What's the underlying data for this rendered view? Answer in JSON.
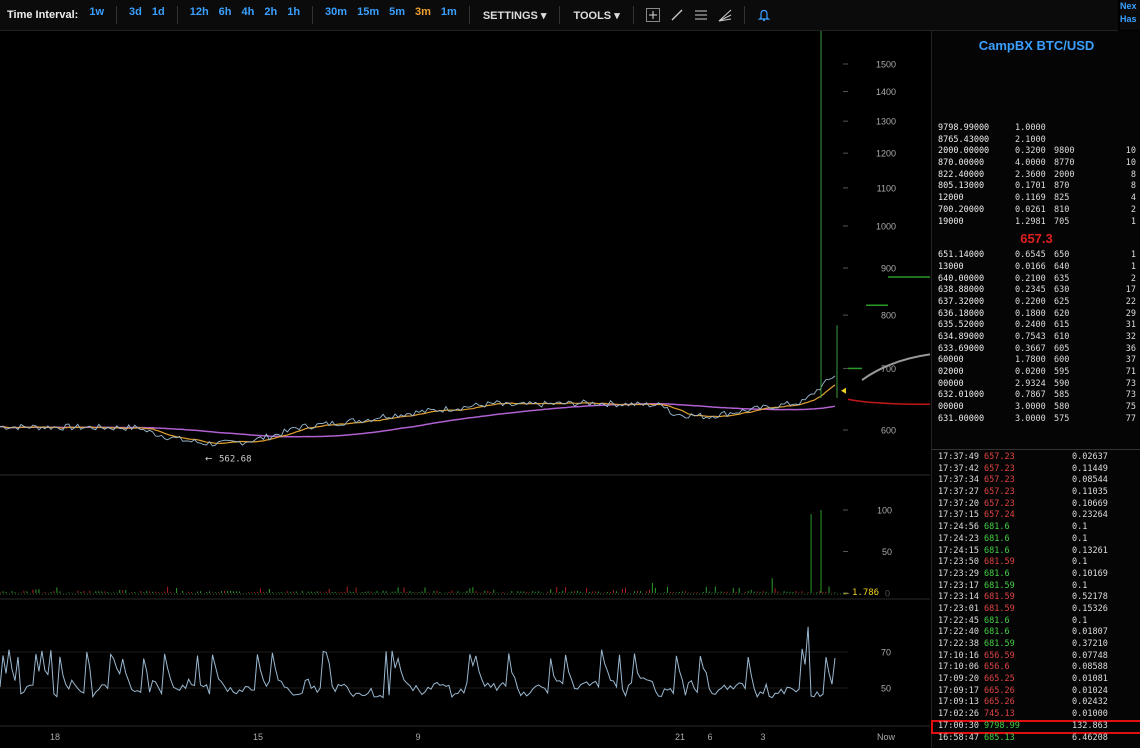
{
  "toolbar": {
    "label": "Time Interval:",
    "intervals": [
      "1w",
      "3d",
      "1d",
      "12h",
      "6h",
      "4h",
      "2h",
      "1h",
      "30m",
      "15m",
      "5m",
      "3m",
      "1m"
    ],
    "active_interval": "3m",
    "settings_label": "SETTINGS",
    "tools_label": "TOOLS",
    "tool_icons": [
      "crosshair-icon",
      "line-icon",
      "horizontal-lines-icon",
      "fan-icon",
      "bell-icon"
    ],
    "corner_text": [
      "Nex",
      "Has"
    ]
  },
  "chart_data": {
    "type": "line",
    "price_axis": {
      "ticks": [
        1500,
        1400,
        1300,
        1200,
        1100,
        1000,
        900,
        800,
        700,
        600
      ]
    },
    "volume_axis": {
      "ticks": [
        100,
        50,
        0
      ]
    },
    "oscillator_axis": {
      "ticks": [
        70,
        50
      ]
    },
    "time_axis": {
      "labels": [
        "18",
        "15",
        "9",
        "21",
        "6",
        "3",
        "Now"
      ]
    },
    "low_annotation": "562.68",
    "volume_annotation": "1.786",
    "colors": {
      "price": "#9ab8d0",
      "ma_fast": "#e0a030",
      "ma_slow": "#b060d0",
      "volume_up": "#2a9a2a",
      "volume_down": "#b02020",
      "oscillator": "#9ab8d0"
    }
  },
  "panel": {
    "title": "CampBX BTC/USD",
    "last_price": "657.3",
    "asks": [
      [
        "9798.99000",
        "1.0000",
        "",
        ""
      ],
      [
        "8765.43000",
        "2.1000",
        "",
        ""
      ],
      [
        "2000.00000",
        "0.3200",
        "9800",
        "10"
      ],
      [
        "870.00000",
        "4.0000",
        "8770",
        "10"
      ],
      [
        "822.40000",
        "2.3600",
        "2000",
        "8"
      ],
      [
        "805.13000",
        "0.1701",
        "870",
        "8"
      ],
      [
        "12000",
        "0.1169",
        "825",
        "4"
      ],
      [
        "700.20000",
        "0.0261",
        "810",
        "2"
      ],
      [
        "19000",
        "1.2981",
        "705",
        "1"
      ]
    ],
    "bids": [
      [
        "651.14000",
        "0.6545",
        "650",
        "1"
      ],
      [
        "13000",
        "0.0166",
        "640",
        "1"
      ],
      [
        "640.00000",
        "0.2100",
        "635",
        "2"
      ],
      [
        "638.88000",
        "0.2345",
        "630",
        "17"
      ],
      [
        "637.32000",
        "0.2200",
        "625",
        "22"
      ],
      [
        "636.18000",
        "0.1800",
        "620",
        "29"
      ],
      [
        "635.52000",
        "0.2400",
        "615",
        "31"
      ],
      [
        "634.89000",
        "0.7543",
        "610",
        "32"
      ],
      [
        "633.69000",
        "0.3667",
        "605",
        "36"
      ],
      [
        "60000",
        "1.7800",
        "600",
        "37"
      ],
      [
        "02000",
        "0.0200",
        "595",
        "71"
      ],
      [
        "00000",
        "2.9324",
        "590",
        "73"
      ],
      [
        "632.01000",
        "0.7867",
        "585",
        "73"
      ],
      [
        "00000",
        "3.0000",
        "580",
        "75"
      ],
      [
        "631.00000",
        "3.0000",
        "575",
        "77"
      ]
    ],
    "trades": [
      [
        "17:37:49",
        "657.23",
        "0.02637",
        "down"
      ],
      [
        "17:37:42",
        "657.23",
        "0.11449",
        "down"
      ],
      [
        "17:37:34",
        "657.23",
        "0.08544",
        "down"
      ],
      [
        "17:37:27",
        "657.23",
        "0.11035",
        "down"
      ],
      [
        "17:37:20",
        "657.23",
        "0.10669",
        "down"
      ],
      [
        "17:37:15",
        "657.24",
        "0.23264",
        "down"
      ],
      [
        "17:24:56",
        "681.6",
        "0.1",
        "up"
      ],
      [
        "17:24:23",
        "681.6",
        "0.1",
        "up"
      ],
      [
        "17:24:15",
        "681.6",
        "0.13261",
        "up"
      ],
      [
        "17:23:50",
        "681.59",
        "0.1",
        "down"
      ],
      [
        "17:23:29",
        "681.6",
        "0.10169",
        "up"
      ],
      [
        "17:23:17",
        "681.59",
        "0.1",
        "up"
      ],
      [
        "17:23:14",
        "681.59",
        "0.52178",
        "down"
      ],
      [
        "17:23:01",
        "681.59",
        "0.15326",
        "down"
      ],
      [
        "17:22:45",
        "681.6",
        "0.1",
        "up"
      ],
      [
        "17:22:40",
        "681.6",
        "0.01807",
        "up"
      ],
      [
        "17:22:38",
        "681.59",
        "0.37210",
        "up"
      ],
      [
        "17:10:16",
        "656.59",
        "0.07748",
        "down"
      ],
      [
        "17:10:06",
        "656.6",
        "0.08588",
        "down"
      ],
      [
        "17:09:20",
        "665.25",
        "0.01081",
        "down"
      ],
      [
        "17:09:17",
        "665.26",
        "0.01024",
        "down"
      ],
      [
        "17:09:13",
        "665.26",
        "0.02432",
        "down"
      ],
      [
        "17:02:26",
        "745.13",
        "0.01000",
        "down"
      ],
      [
        "17:00:30",
        "9798.99",
        "132.863",
        "up"
      ],
      [
        "16:58:47",
        "685.13",
        "6.46208",
        "up"
      ]
    ],
    "highlighted_trade_index": 23
  }
}
